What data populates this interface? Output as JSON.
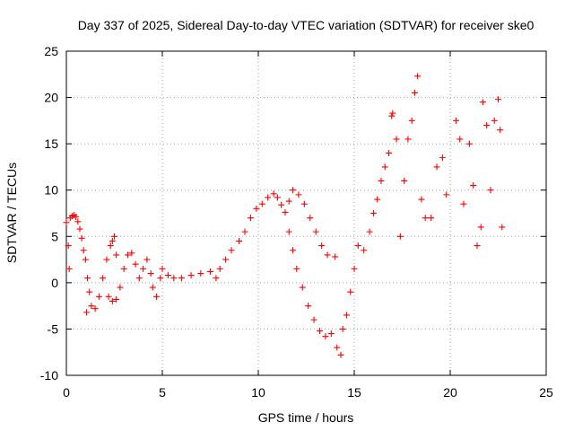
{
  "chart_data": {
    "type": "scatter",
    "title": "Day 337 of 2025, Sidereal Day-to-day VTEC variation (SDTVAR) for receiver ske0",
    "xlabel": "GPS time / hours",
    "ylabel": "SDTVAR / TECUs",
    "xlim": [
      0,
      25
    ],
    "ylim": [
      -10,
      25
    ],
    "x_ticks": [
      0,
      5,
      10,
      15,
      20,
      25
    ],
    "y_ticks": [
      -10,
      -5,
      0,
      5,
      10,
      15,
      20,
      25
    ],
    "x_tick_labels": [
      "0",
      "5",
      "10",
      "15",
      "20",
      "25"
    ],
    "y_tick_labels": [
      "-10",
      "-5",
      "0",
      "5",
      "10",
      "15",
      "20",
      "25"
    ],
    "grid": true,
    "marker": "plus",
    "series": [
      {
        "name": "SDTVAR",
        "color": "#ff0000",
        "points": [
          [
            0.0,
            6.5
          ],
          [
            0.1,
            4.0
          ],
          [
            0.15,
            1.5
          ],
          [
            0.2,
            7.0
          ],
          [
            0.3,
            7.2
          ],
          [
            0.4,
            7.3
          ],
          [
            0.5,
            7.1
          ],
          [
            0.6,
            6.6
          ],
          [
            0.7,
            5.8
          ],
          [
            0.8,
            4.8
          ],
          [
            0.9,
            3.5
          ],
          [
            1.0,
            2.5
          ],
          [
            1.1,
            0.5
          ],
          [
            1.2,
            -1.0
          ],
          [
            1.3,
            -2.5
          ],
          [
            1.05,
            -3.2
          ],
          [
            1.5,
            -2.8
          ],
          [
            1.7,
            -1.5
          ],
          [
            1.9,
            0.5
          ],
          [
            2.1,
            2.5
          ],
          [
            2.3,
            4.0
          ],
          [
            2.4,
            4.5
          ],
          [
            2.5,
            5.0
          ],
          [
            2.6,
            3.0
          ],
          [
            2.2,
            -1.5
          ],
          [
            2.4,
            -2.0
          ],
          [
            2.6,
            -1.8
          ],
          [
            2.8,
            -0.5
          ],
          [
            3.0,
            1.5
          ],
          [
            3.2,
            3.0
          ],
          [
            3.4,
            3.2
          ],
          [
            3.6,
            2.0
          ],
          [
            3.8,
            0.5
          ],
          [
            4.0,
            1.5
          ],
          [
            4.2,
            2.5
          ],
          [
            4.4,
            1.0
          ],
          [
            4.5,
            -0.5
          ],
          [
            4.7,
            -1.5
          ],
          [
            4.9,
            0.5
          ],
          [
            5.0,
            1.5
          ],
          [
            5.3,
            0.8
          ],
          [
            5.6,
            0.5
          ],
          [
            6.0,
            0.5
          ],
          [
            6.5,
            0.8
          ],
          [
            7.0,
            1.0
          ],
          [
            7.5,
            1.2
          ],
          [
            7.8,
            0.5
          ],
          [
            8.0,
            1.5
          ],
          [
            8.3,
            2.5
          ],
          [
            8.6,
            3.5
          ],
          [
            9.0,
            4.5
          ],
          [
            9.3,
            5.5
          ],
          [
            9.6,
            7.0
          ],
          [
            9.9,
            8.0
          ],
          [
            10.2,
            8.5
          ],
          [
            10.5,
            9.2
          ],
          [
            10.8,
            9.6
          ],
          [
            11.0,
            9.2
          ],
          [
            11.2,
            8.4
          ],
          [
            11.4,
            7.6
          ],
          [
            11.6,
            8.8
          ],
          [
            11.8,
            10.0
          ],
          [
            12.1,
            9.5
          ],
          [
            12.4,
            8.5
          ],
          [
            12.7,
            7.0
          ],
          [
            13.0,
            5.5
          ],
          [
            13.3,
            4.0
          ],
          [
            13.6,
            3.0
          ],
          [
            14.0,
            2.8
          ],
          [
            11.6,
            5.5
          ],
          [
            11.8,
            3.5
          ],
          [
            12.0,
            1.5
          ],
          [
            12.3,
            -0.5
          ],
          [
            12.6,
            -2.5
          ],
          [
            12.9,
            -4.0
          ],
          [
            13.2,
            -5.2
          ],
          [
            13.5,
            -5.8
          ],
          [
            13.8,
            -5.5
          ],
          [
            14.1,
            -7.0
          ],
          [
            14.3,
            -7.8
          ],
          [
            14.4,
            -5.0
          ],
          [
            14.6,
            -3.5
          ],
          [
            14.8,
            -1.0
          ],
          [
            15.0,
            1.5
          ],
          [
            15.2,
            4.0
          ],
          [
            15.5,
            3.5
          ],
          [
            15.8,
            5.5
          ],
          [
            16.0,
            7.5
          ],
          [
            16.2,
            9.0
          ],
          [
            16.4,
            11.0
          ],
          [
            16.6,
            12.5
          ],
          [
            16.8,
            14.0
          ],
          [
            16.95,
            18.0
          ],
          [
            17.0,
            18.3
          ],
          [
            17.2,
            15.5
          ],
          [
            17.4,
            5.0
          ],
          [
            17.6,
            11.0
          ],
          [
            17.8,
            15.5
          ],
          [
            18.0,
            17.5
          ],
          [
            18.15,
            20.5
          ],
          [
            18.3,
            22.3
          ],
          [
            18.5,
            9.0
          ],
          [
            18.7,
            7.0
          ],
          [
            19.0,
            7.0
          ],
          [
            19.3,
            12.5
          ],
          [
            19.6,
            13.5
          ],
          [
            19.8,
            9.5
          ],
          [
            20.3,
            17.5
          ],
          [
            20.5,
            15.5
          ],
          [
            20.7,
            8.5
          ],
          [
            21.0,
            15.0
          ],
          [
            21.2,
            10.5
          ],
          [
            21.4,
            4.0
          ],
          [
            21.6,
            6.0
          ],
          [
            21.7,
            19.5
          ],
          [
            21.9,
            17.0
          ],
          [
            22.1,
            10.0
          ],
          [
            22.3,
            17.5
          ],
          [
            22.5,
            19.8
          ],
          [
            22.6,
            16.5
          ],
          [
            22.7,
            6.0
          ]
        ]
      }
    ]
  }
}
